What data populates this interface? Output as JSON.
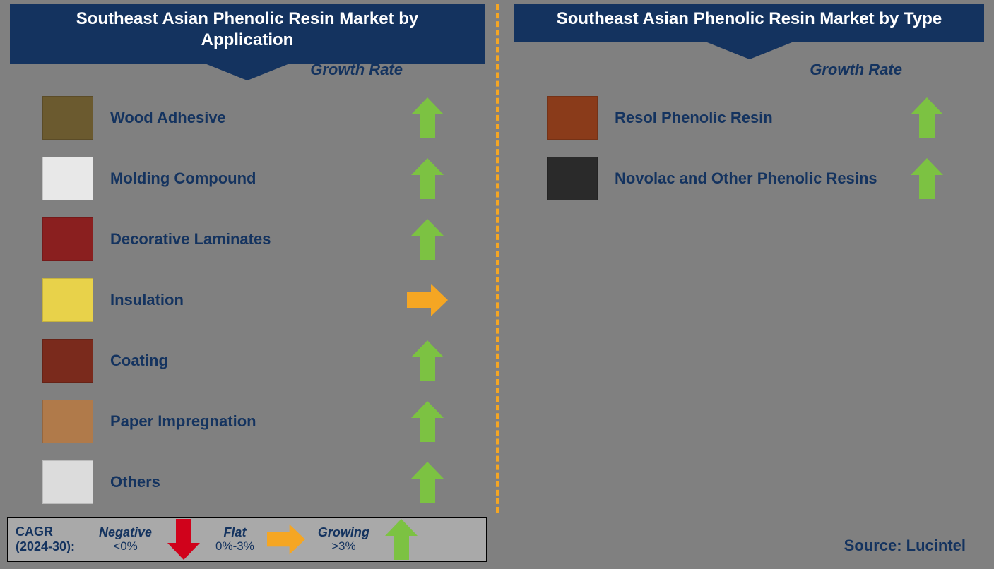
{
  "colors": {
    "bg": "#808080",
    "banner_bg": "#14335f",
    "banner_text": "#ffffff",
    "label_text": "#14335f",
    "divider": "#F5A623",
    "arrow_up": "#7cc242",
    "arrow_flat": "#f5a623",
    "arrow_down": "#d0021b",
    "legend_bg": "#a9a9a9",
    "legend_border": "#000000"
  },
  "left": {
    "title": "Southeast Asian Phenolic Resin Market by Application",
    "growth_label": "Growth Rate",
    "items": [
      {
        "label": "Wood Adhesive",
        "growth": "up",
        "thumb": "#6b5a2f"
      },
      {
        "label": "Molding Compound",
        "growth": "up",
        "thumb": "#e8e8e8"
      },
      {
        "label": "Decorative Laminates",
        "growth": "up",
        "thumb": "#8a1f1f"
      },
      {
        "label": "Insulation",
        "growth": "flat",
        "thumb": "#e8d24a"
      },
      {
        "label": "Coating",
        "growth": "up",
        "thumb": "#7a2a1c"
      },
      {
        "label": "Paper Impregnation",
        "growth": "up",
        "thumb": "#b07a4a"
      },
      {
        "label": "Others",
        "growth": "up",
        "thumb": "#dcdcdc"
      }
    ]
  },
  "right": {
    "title": "Southeast Asian Phenolic Resin Market by Type",
    "growth_label": "Growth Rate",
    "items": [
      {
        "label": "Resol Phenolic Resin",
        "growth": "up",
        "thumb": "#8a3b1a"
      },
      {
        "label": "Novolac and Other Phenolic Resins",
        "growth": "up",
        "thumb": "#2a2a2a"
      }
    ]
  },
  "legend": {
    "cagr_line1": "CAGR",
    "cagr_line2": "(2024-30):",
    "negative_label": "Negative",
    "negative_range": "<0%",
    "flat_label": "Flat",
    "flat_range": "0%-3%",
    "growing_label": "Growing",
    "growing_range": ">3%"
  },
  "source": "Source: Lucintel",
  "arrow": {
    "up_svg_fill": "#7cc242",
    "flat_svg_fill": "#f5a623",
    "down_svg_fill": "#d0021b",
    "width": 46,
    "height": 58
  }
}
